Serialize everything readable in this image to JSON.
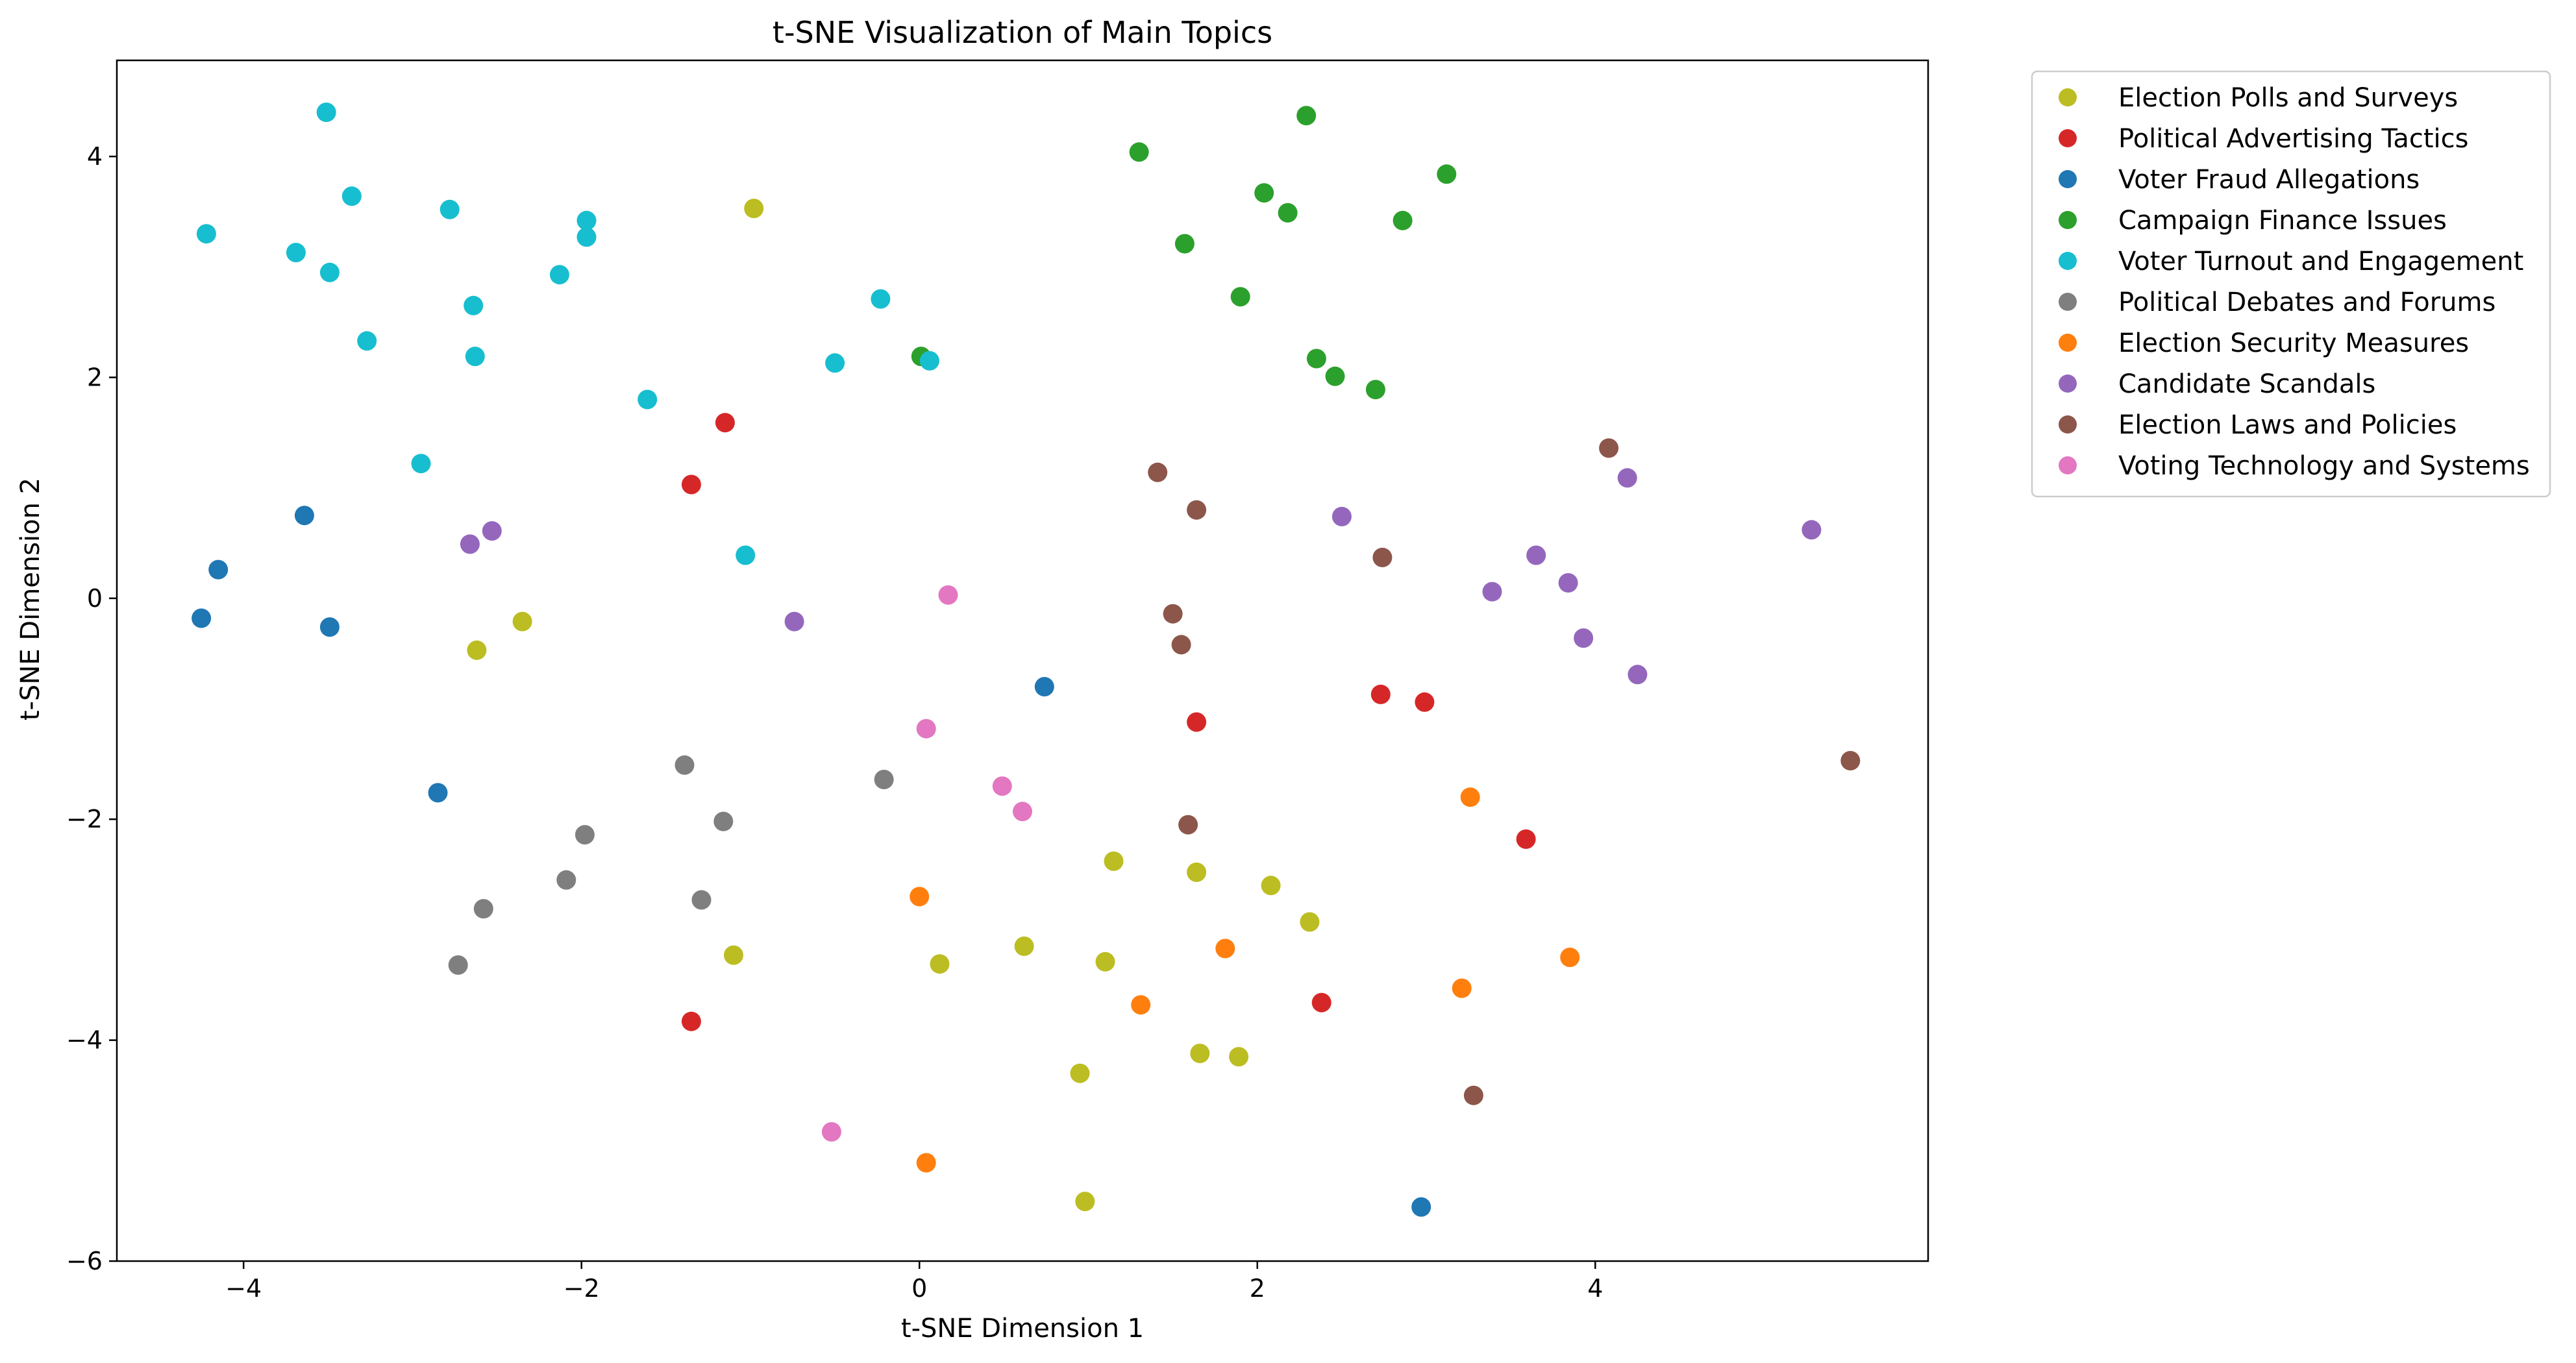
{
  "chart_data": {
    "type": "scatter",
    "title": "t-SNE Visualization of Main Topics",
    "xlabel": "t-SNE Dimension 1",
    "ylabel": "t-SNE Dimension 2",
    "xlim": [
      -4.75,
      5.97
    ],
    "ylim": [
      -6.0,
      4.87
    ],
    "xticks": [
      -4,
      -2,
      0,
      2,
      4
    ],
    "yticks": [
      -6,
      -4,
      -2,
      0,
      2,
      4
    ],
    "xtick_labels": [
      "−4",
      "−2",
      "0",
      "2",
      "4"
    ],
    "ytick_labels": [
      "−6",
      "−4",
      "−2",
      "0",
      "2",
      "4"
    ],
    "grid": false,
    "legend_position": "outside-top-right",
    "series": [
      {
        "name": "Election Polls and Surveys",
        "color": "#bcbd22",
        "points": [
          [
            -0.98,
            3.53
          ],
          [
            -2.62,
            -0.47
          ],
          [
            -2.35,
            -0.21
          ],
          [
            -1.1,
            -3.23
          ],
          [
            0.12,
            -3.31
          ],
          [
            0.62,
            -3.15
          ],
          [
            1.1,
            -3.29
          ],
          [
            1.15,
            -2.38
          ],
          [
            1.64,
            -2.48
          ],
          [
            2.08,
            -2.6
          ],
          [
            2.31,
            -2.93
          ],
          [
            0.95,
            -4.3
          ],
          [
            1.66,
            -4.12
          ],
          [
            1.89,
            -4.15
          ],
          [
            0.98,
            -5.46
          ]
        ]
      },
      {
        "name": "Political Advertising Tactics",
        "color": "#d62728",
        "points": [
          [
            -1.15,
            1.59
          ],
          [
            -1.35,
            1.03
          ],
          [
            1.64,
            -1.12
          ],
          [
            2.73,
            -0.87
          ],
          [
            2.99,
            -0.94
          ],
          [
            3.59,
            -2.18
          ],
          [
            2.38,
            -3.66
          ],
          [
            -1.35,
            -3.83
          ]
        ]
      },
      {
        "name": "Voter Fraud Allegations",
        "color": "#1f77b4",
        "points": [
          [
            -3.64,
            0.75
          ],
          [
            -4.15,
            0.26
          ],
          [
            -4.25,
            -0.18
          ],
          [
            -3.49,
            -0.26
          ],
          [
            -2.85,
            -1.76
          ],
          [
            0.74,
            -0.8
          ],
          [
            2.97,
            -5.51
          ]
        ]
      },
      {
        "name": "Campaign Finance Issues",
        "color": "#2ca02c",
        "points": [
          [
            1.3,
            4.04
          ],
          [
            2.29,
            4.37
          ],
          [
            3.12,
            3.84
          ],
          [
            2.04,
            3.67
          ],
          [
            2.18,
            3.49
          ],
          [
            2.86,
            3.42
          ],
          [
            1.57,
            3.21
          ],
          [
            1.9,
            2.73
          ],
          [
            2.35,
            2.17
          ],
          [
            2.46,
            2.01
          ],
          [
            2.7,
            1.89
          ],
          [
            0.01,
            2.19
          ]
        ]
      },
      {
        "name": "Voter Turnout and Engagement",
        "color": "#17becf",
        "points": [
          [
            -3.51,
            4.4
          ],
          [
            -3.36,
            3.64
          ],
          [
            -2.78,
            3.52
          ],
          [
            -4.22,
            3.3
          ],
          [
            -3.69,
            3.13
          ],
          [
            -3.49,
            2.95
          ],
          [
            -1.97,
            3.42
          ],
          [
            -1.97,
            3.27
          ],
          [
            -2.13,
            2.93
          ],
          [
            -2.64,
            2.65
          ],
          [
            -3.27,
            2.33
          ],
          [
            -2.63,
            2.19
          ],
          [
            -0.23,
            2.71
          ],
          [
            -0.5,
            2.13
          ],
          [
            0.06,
            2.15
          ],
          [
            -1.61,
            1.8
          ],
          [
            -2.95,
            1.22
          ],
          [
            -1.03,
            0.39
          ]
        ]
      },
      {
        "name": "Political Debates and Forums",
        "color": "#7f7f7f",
        "points": [
          [
            -1.39,
            -1.51
          ],
          [
            -0.21,
            -1.64
          ],
          [
            -1.16,
            -2.02
          ],
          [
            -1.98,
            -2.14
          ],
          [
            -2.09,
            -2.55
          ],
          [
            -1.29,
            -2.73
          ],
          [
            -2.58,
            -2.81
          ],
          [
            -2.73,
            -3.32
          ]
        ]
      },
      {
        "name": "Election Security Measures",
        "color": "#ff7f0e",
        "points": [
          [
            3.26,
            -1.8
          ],
          [
            0.0,
            -2.7
          ],
          [
            1.81,
            -3.17
          ],
          [
            3.85,
            -3.25
          ],
          [
            3.21,
            -3.53
          ],
          [
            1.31,
            -3.68
          ],
          [
            0.04,
            -5.11
          ]
        ]
      },
      {
        "name": "Candidate Scandals",
        "color": "#9467bd",
        "points": [
          [
            -2.53,
            0.61
          ],
          [
            -2.66,
            0.49
          ],
          [
            -0.74,
            -0.21
          ],
          [
            2.5,
            0.74
          ],
          [
            4.19,
            1.09
          ],
          [
            5.28,
            0.62
          ],
          [
            3.65,
            0.39
          ],
          [
            3.84,
            0.14
          ],
          [
            3.39,
            0.06
          ],
          [
            3.93,
            -0.36
          ],
          [
            4.25,
            -0.69
          ]
        ]
      },
      {
        "name": "Election Laws and Policies",
        "color": "#8c564b",
        "points": [
          [
            1.41,
            1.14
          ],
          [
            1.64,
            0.8
          ],
          [
            2.74,
            0.37
          ],
          [
            4.08,
            1.36
          ],
          [
            1.5,
            -0.14
          ],
          [
            1.55,
            -0.42
          ],
          [
            1.59,
            -2.05
          ],
          [
            5.51,
            -1.47
          ],
          [
            3.28,
            -4.5
          ]
        ]
      },
      {
        "name": "Voting Technology and Systems",
        "color": "#e377c2",
        "points": [
          [
            0.17,
            0.03
          ],
          [
            0.04,
            -1.18
          ],
          [
            0.49,
            -1.7
          ],
          [
            0.61,
            -1.93
          ],
          [
            -0.52,
            -4.83
          ]
        ]
      }
    ]
  }
}
